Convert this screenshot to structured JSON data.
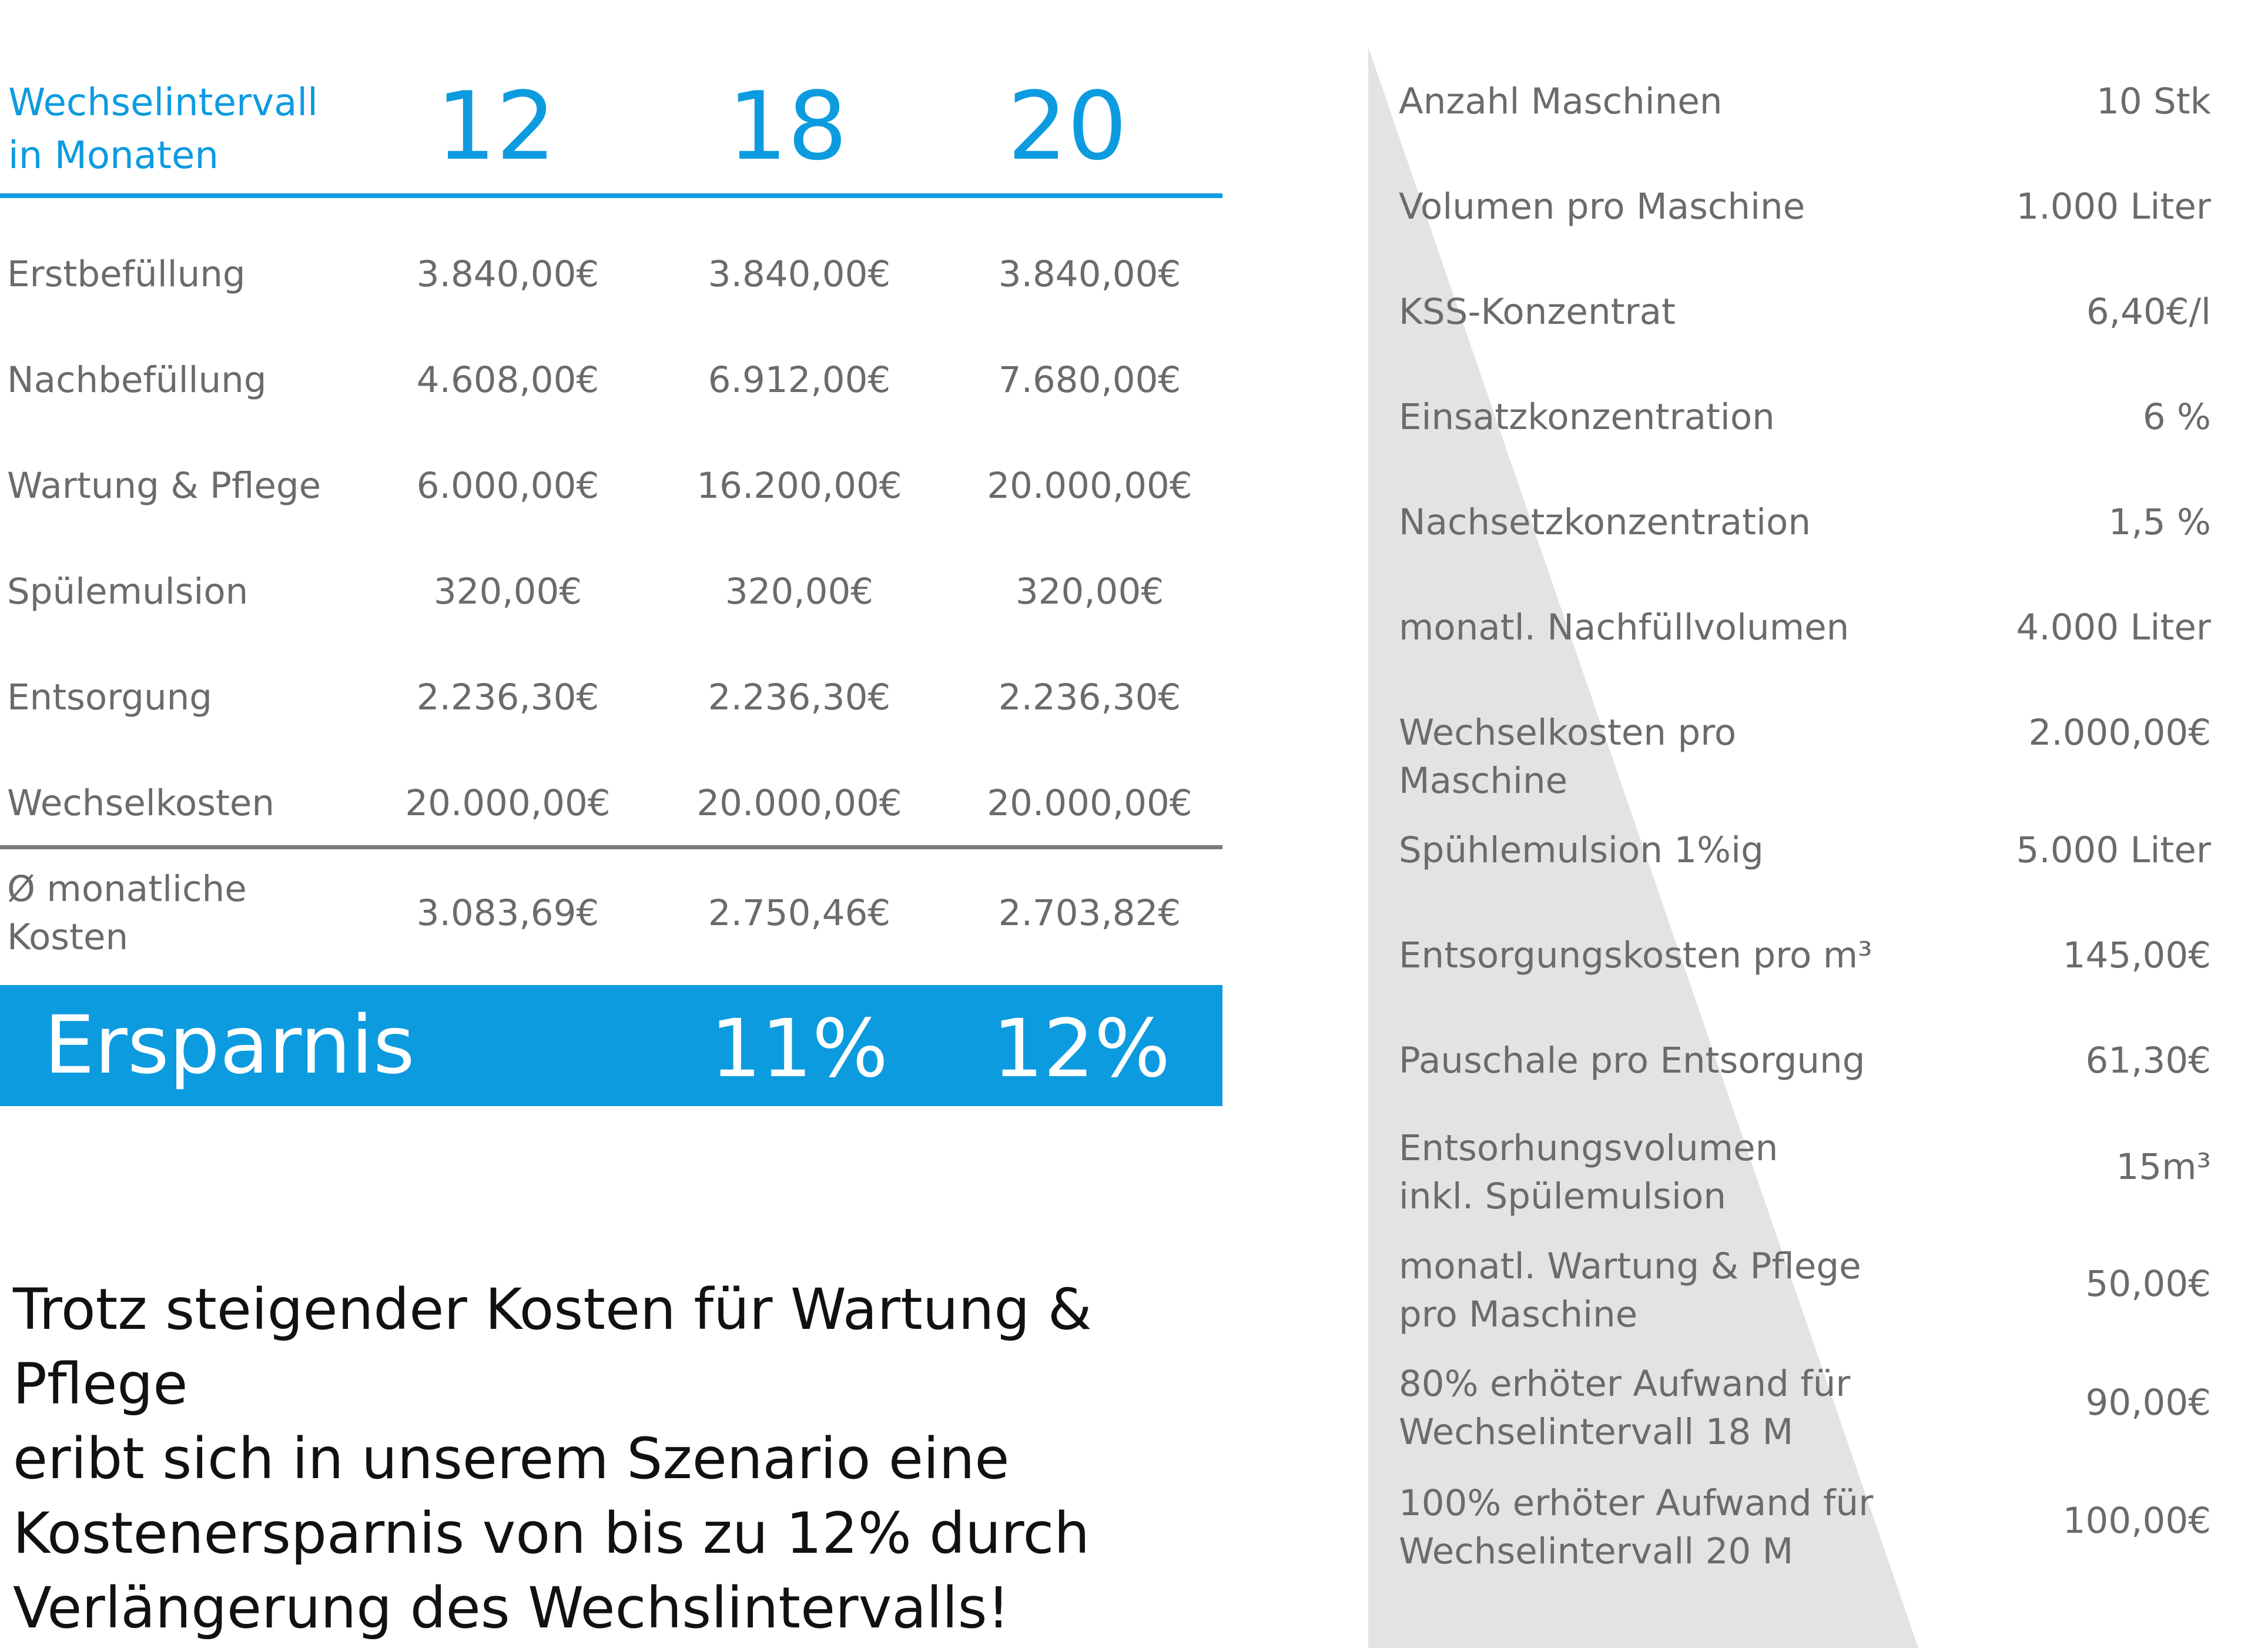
{
  "header": {
    "label_line1": "Wechselintervall",
    "label_line2": "in Monaten",
    "months": [
      "12",
      "18",
      "20"
    ]
  },
  "rows": [
    {
      "label": "Erstbefüllung",
      "values": [
        "3.840,00€",
        "3.840,00€",
        "3.840,00€"
      ]
    },
    {
      "label": "Nachbefüllung",
      "values": [
        "4.608,00€",
        "6.912,00€",
        "7.680,00€"
      ]
    },
    {
      "label": "Wartung & Pflege",
      "values": [
        "6.000,00€",
        "16.200,00€",
        "20.000,00€"
      ]
    },
    {
      "label": "Spülemulsion",
      "values": [
        "320,00€",
        "320,00€",
        "320,00€"
      ]
    },
    {
      "label": "Entsorgung",
      "values": [
        "2.236,30€",
        "2.236,30€",
        "2.236,30€"
      ]
    },
    {
      "label": "Wechselkosten",
      "values": [
        "20.000,00€",
        "20.000,00€",
        "20.000,00€"
      ]
    }
  ],
  "average": {
    "label_line1": "Ø monatliche",
    "label_line2": "Kosten",
    "values": [
      "3.083,69€",
      "2.750,46€",
      "2.703,82€"
    ]
  },
  "savings": {
    "label": "Ersparnis",
    "values": [
      "",
      "11%",
      "12%"
    ]
  },
  "summary": [
    "Trotz steigender Kosten für Wartung & Pflege",
    "eribt sich in unserem Szenario eine",
    "Kostenersparnis von bis zu  12% durch",
    "Verlängerung des Wechslintervalls!"
  ],
  "parameters": [
    {
      "label_lines": [
        "Anzahl Maschinen"
      ],
      "value": "10 Stk"
    },
    {
      "label_lines": [
        "Volumen pro Maschine"
      ],
      "value": "1.000 Liter"
    },
    {
      "label_lines": [
        "KSS-Konzentrat"
      ],
      "value": "6,40€/l"
    },
    {
      "label_lines": [
        "Einsatzkonzentration"
      ],
      "value": "6 %"
    },
    {
      "label_lines": [
        "Nachsetzkonzentration"
      ],
      "value": "1,5 %"
    },
    {
      "label_lines": [
        "monatl. Nachfüllvolumen"
      ],
      "value": "4.000 Liter"
    },
    {
      "label_lines": [
        "Wechselkosten pro",
        "Maschine"
      ],
      "value": "2.000,00€"
    },
    {
      "label_lines": [
        "Spühlemulsion 1%ig"
      ],
      "value": "5.000 Liter"
    },
    {
      "label_lines": [
        "Entsorgungskosten pro m³"
      ],
      "value": "145,00€"
    },
    {
      "label_lines": [
        "Pauschale pro Entsorgung"
      ],
      "value": "61,30€"
    },
    {
      "label_lines": [
        "Entsorhungsvolumen",
        "inkl. Spülemulsion"
      ],
      "value": "15m³"
    },
    {
      "label_lines": [
        "monatl. Wartung & Pflege",
        "pro Maschine"
      ],
      "value": "50,00€"
    },
    {
      "label_lines": [
        "80% erhöter Aufwand für",
        "Wechselintervall 18 M"
      ],
      "value": "90,00€"
    },
    {
      "label_lines": [
        "100% erhöter Aufwand für",
        "Wechselintervall 20 M"
      ],
      "value": "100,00€"
    }
  ],
  "colors": {
    "accent": "#0d9be0",
    "text_grey": "#6b6b6b",
    "panel_bg": "#e3e3e3",
    "rule_grey": "#7b7b7b"
  }
}
